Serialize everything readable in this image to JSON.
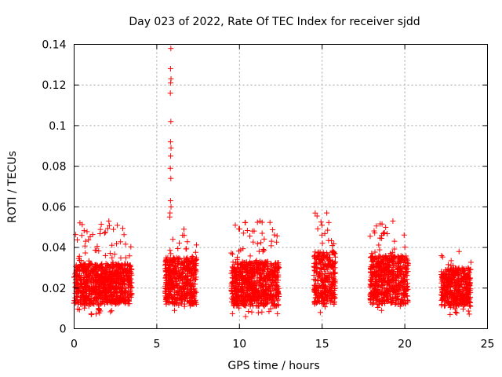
{
  "chart_data": {
    "type": "scatter",
    "title": "Day 023 of 2022, Rate Of TEC Index for receiver sjdd",
    "xlabel": "GPS time / hours",
    "ylabel": "ROTI / TECUs",
    "xlim": [
      0,
      25
    ],
    "ylim": [
      0,
      0.14
    ],
    "xticks": [
      0,
      5,
      10,
      15,
      20,
      25
    ],
    "yticks": [
      0,
      0.02,
      0.04,
      0.06,
      0.08,
      0.1,
      0.12,
      0.14
    ],
    "xtick_labels": [
      "0",
      "5",
      "10",
      "15",
      "20",
      "25"
    ],
    "ytick_labels": [
      "0",
      "0.02",
      "0.04",
      "0.06",
      "0.08",
      "0.1",
      "0.12",
      "0.14"
    ],
    "grid": true,
    "marker": "+",
    "color": "#ff0000",
    "series": [
      {
        "name": "ROTI",
        "clusters": [
          {
            "x_range": [
              0.0,
              3.5
            ],
            "y_range": [
              0.007,
              0.053
            ],
            "typical": [
              0.012,
              0.032
            ]
          },
          {
            "x_range": [
              5.5,
              7.4
            ],
            "y_range": [
              0.009,
              0.049
            ],
            "typical": [
              0.012,
              0.035
            ]
          },
          {
            "x_range": [
              9.5,
              12.4
            ],
            "y_range": [
              0.006,
              0.053
            ],
            "typical": [
              0.011,
              0.033
            ]
          },
          {
            "x_range": [
              14.5,
              15.8
            ],
            "y_range": [
              0.008,
              0.057
            ],
            "typical": [
              0.012,
              0.038
            ]
          },
          {
            "x_range": [
              17.9,
              20.2
            ],
            "y_range": [
              0.009,
              0.053
            ],
            "typical": [
              0.012,
              0.036
            ]
          },
          {
            "x_range": [
              22.2,
              24.0
            ],
            "y_range": [
              0.007,
              0.038
            ],
            "typical": [
              0.011,
              0.03
            ]
          }
        ],
        "spike_points": [
          {
            "x": 5.85,
            "y": 0.138
          },
          {
            "x": 5.83,
            "y": 0.128
          },
          {
            "x": 5.86,
            "y": 0.123
          },
          {
            "x": 5.84,
            "y": 0.121
          },
          {
            "x": 5.82,
            "y": 0.116
          },
          {
            "x": 5.85,
            "y": 0.102
          },
          {
            "x": 5.83,
            "y": 0.092
          },
          {
            "x": 5.86,
            "y": 0.089
          },
          {
            "x": 5.84,
            "y": 0.085
          },
          {
            "x": 5.82,
            "y": 0.079
          },
          {
            "x": 5.85,
            "y": 0.074
          },
          {
            "x": 5.83,
            "y": 0.063
          },
          {
            "x": 5.86,
            "y": 0.06
          },
          {
            "x": 5.8,
            "y": 0.057
          },
          {
            "x": 5.78,
            "y": 0.055
          }
        ]
      }
    ]
  }
}
